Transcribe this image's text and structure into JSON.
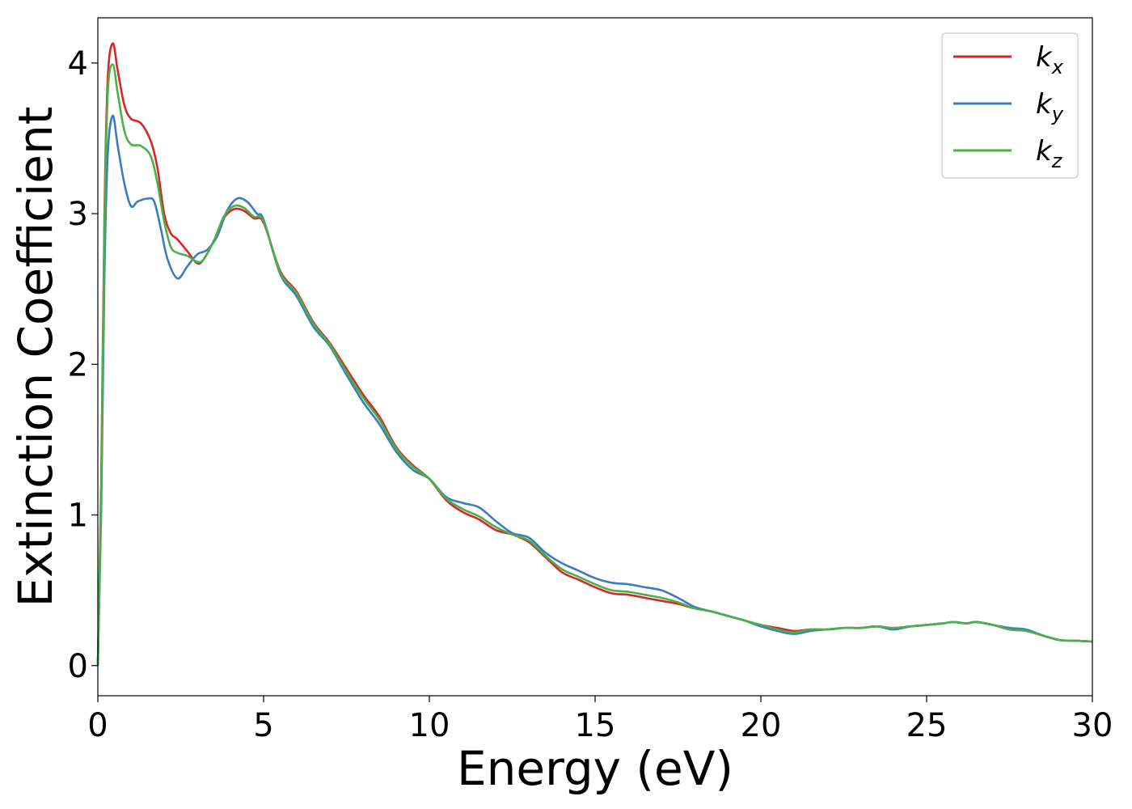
{
  "chart_data": {
    "type": "line",
    "title": "",
    "xlabel": "Energy (eV)",
    "ylabel": "Extinction Coefficient",
    "xlim": [
      0,
      30
    ],
    "ylim": [
      -0.2,
      4.3
    ],
    "xticks": [
      "0",
      "5",
      "10",
      "15",
      "20",
      "25",
      "30"
    ],
    "xtick_values": [
      0,
      5,
      10,
      15,
      20,
      25,
      30
    ],
    "yticks": [
      "0",
      "1",
      "2",
      "3",
      "4"
    ],
    "ytick_values": [
      0,
      1,
      2,
      3,
      4
    ],
    "grid": false,
    "legend_position": "top-right",
    "series": [
      {
        "name": "k",
        "subscript": "x",
        "color": "#d62728",
        "x": [
          0,
          0.1,
          0.2,
          0.3,
          0.45,
          0.6,
          0.8,
          1.0,
          1.3,
          1.6,
          1.8,
          2.0,
          2.2,
          2.4,
          2.7,
          3.0,
          3.2,
          3.5,
          3.8,
          4.1,
          4.4,
          4.7,
          5.0,
          5.5,
          6.0,
          6.5,
          7.0,
          7.5,
          8.0,
          8.5,
          9.0,
          9.5,
          10.0,
          10.5,
          11.0,
          11.5,
          12.0,
          12.5,
          13.0,
          13.5,
          14.0,
          14.5,
          15.0,
          15.5,
          16.0,
          16.5,
          17.0,
          17.5,
          18.0,
          18.5,
          19.0,
          19.5,
          20.0,
          20.5,
          21.0,
          21.5,
          22.0,
          22.5,
          23.0,
          23.5,
          24.0,
          24.5,
          25.0,
          25.5,
          25.8,
          26.2,
          26.5,
          27.0,
          27.5,
          28.0,
          28.5,
          29.0,
          29.5,
          30.0
        ],
        "y": [
          0.0,
          1.2,
          3.0,
          3.9,
          4.13,
          3.95,
          3.72,
          3.63,
          3.6,
          3.48,
          3.3,
          3.0,
          2.87,
          2.83,
          2.75,
          2.67,
          2.7,
          2.82,
          2.97,
          3.03,
          3.02,
          2.97,
          2.94,
          2.62,
          2.48,
          2.28,
          2.14,
          1.97,
          1.8,
          1.65,
          1.45,
          1.33,
          1.24,
          1.1,
          1.02,
          0.97,
          0.9,
          0.87,
          0.82,
          0.72,
          0.62,
          0.57,
          0.52,
          0.48,
          0.47,
          0.45,
          0.43,
          0.41,
          0.38,
          0.36,
          0.33,
          0.3,
          0.27,
          0.25,
          0.23,
          0.24,
          0.24,
          0.25,
          0.25,
          0.26,
          0.25,
          0.26,
          0.27,
          0.28,
          0.29,
          0.28,
          0.29,
          0.27,
          0.24,
          0.23,
          0.2,
          0.17,
          0.165,
          0.16
        ]
      },
      {
        "name": "k",
        "subscript": "y",
        "color": "#3a7dbf",
        "x": [
          0,
          0.1,
          0.2,
          0.3,
          0.45,
          0.6,
          0.8,
          1.0,
          1.2,
          1.5,
          1.7,
          1.9,
          2.1,
          2.4,
          2.7,
          3.0,
          3.3,
          3.6,
          3.9,
          4.2,
          4.5,
          4.8,
          5.0,
          5.5,
          6.0,
          6.5,
          7.0,
          7.5,
          8.0,
          8.5,
          9.0,
          9.5,
          10.0,
          10.5,
          11.0,
          11.5,
          12.0,
          12.5,
          13.0,
          13.5,
          14.0,
          14.5,
          15.0,
          15.5,
          16.0,
          16.5,
          17.0,
          17.5,
          18.0,
          18.5,
          19.0,
          19.5,
          20.0,
          20.5,
          21.0,
          21.5,
          22.0,
          22.5,
          23.0,
          23.5,
          24.0,
          24.5,
          25.0,
          25.5,
          25.8,
          26.2,
          26.5,
          27.0,
          27.5,
          28.0,
          28.5,
          29.0,
          29.5,
          30.0
        ],
        "y": [
          0.0,
          1.0,
          2.6,
          3.4,
          3.65,
          3.45,
          3.2,
          3.05,
          3.08,
          3.1,
          3.08,
          2.9,
          2.7,
          2.57,
          2.65,
          2.73,
          2.76,
          2.85,
          3.02,
          3.1,
          3.08,
          3.0,
          2.96,
          2.6,
          2.45,
          2.25,
          2.12,
          1.93,
          1.75,
          1.6,
          1.42,
          1.3,
          1.24,
          1.12,
          1.08,
          1.05,
          0.96,
          0.88,
          0.85,
          0.75,
          0.68,
          0.63,
          0.58,
          0.55,
          0.54,
          0.52,
          0.5,
          0.45,
          0.39,
          0.36,
          0.33,
          0.3,
          0.26,
          0.23,
          0.21,
          0.23,
          0.24,
          0.25,
          0.25,
          0.26,
          0.24,
          0.26,
          0.27,
          0.28,
          0.29,
          0.28,
          0.29,
          0.27,
          0.25,
          0.24,
          0.2,
          0.17,
          0.165,
          0.16
        ]
      },
      {
        "name": "k",
        "subscript": "z",
        "color": "#4daf4a",
        "x": [
          0,
          0.1,
          0.2,
          0.3,
          0.45,
          0.6,
          0.8,
          1.0,
          1.3,
          1.6,
          1.8,
          2.0,
          2.2,
          2.4,
          2.7,
          3.0,
          3.2,
          3.5,
          3.8,
          4.1,
          4.4,
          4.7,
          5.0,
          5.5,
          6.0,
          6.5,
          7.0,
          7.5,
          8.0,
          8.5,
          9.0,
          9.5,
          10.0,
          10.5,
          11.0,
          11.5,
          12.0,
          12.5,
          13.0,
          13.5,
          14.0,
          14.5,
          15.0,
          15.5,
          16.0,
          16.5,
          17.0,
          17.5,
          18.0,
          18.5,
          19.0,
          19.5,
          20.0,
          20.5,
          21.0,
          21.5,
          22.0,
          22.5,
          23.0,
          23.5,
          24.0,
          24.5,
          25.0,
          25.5,
          25.8,
          26.2,
          26.5,
          27.0,
          27.5,
          28.0,
          28.5,
          29.0,
          29.5,
          30.0
        ],
        "y": [
          0.0,
          1.1,
          2.9,
          3.8,
          3.99,
          3.8,
          3.55,
          3.46,
          3.45,
          3.38,
          3.2,
          2.95,
          2.78,
          2.74,
          2.72,
          2.68,
          2.7,
          2.82,
          2.98,
          3.05,
          3.04,
          2.98,
          2.95,
          2.61,
          2.47,
          2.27,
          2.13,
          1.95,
          1.78,
          1.63,
          1.44,
          1.32,
          1.24,
          1.11,
          1.04,
          0.99,
          0.92,
          0.87,
          0.83,
          0.73,
          0.64,
          0.59,
          0.54,
          0.5,
          0.49,
          0.47,
          0.45,
          0.42,
          0.38,
          0.36,
          0.33,
          0.3,
          0.27,
          0.24,
          0.22,
          0.24,
          0.24,
          0.25,
          0.25,
          0.26,
          0.25,
          0.26,
          0.27,
          0.28,
          0.29,
          0.28,
          0.29,
          0.27,
          0.24,
          0.23,
          0.2,
          0.17,
          0.165,
          0.16
        ]
      }
    ]
  }
}
